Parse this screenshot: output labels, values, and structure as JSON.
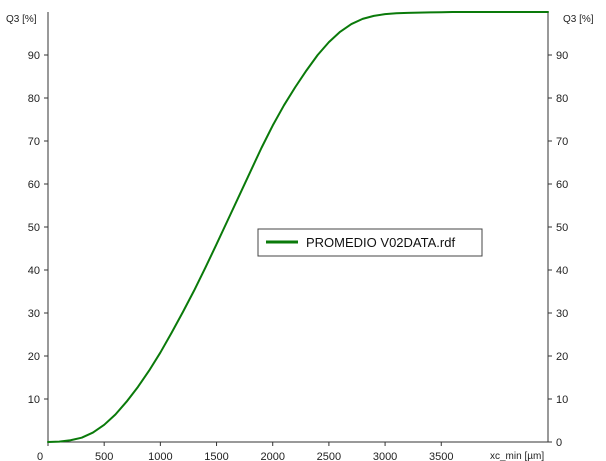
{
  "chart_data": {
    "type": "line",
    "title": "",
    "xlabel": "xc_min [µm]",
    "ylabel": "Q3 [%]",
    "ylabel_right": "Q3 [%]",
    "xlim": [
      0,
      4450
    ],
    "ylim": [
      0,
      100
    ],
    "x_ticks": [
      0,
      500,
      1000,
      1500,
      2000,
      2500,
      3000,
      3500
    ],
    "y_ticks": [
      10,
      20,
      30,
      40,
      50,
      60,
      70,
      80,
      90
    ],
    "y_ticks_right": [
      0,
      10,
      20,
      30,
      40,
      50,
      60,
      70,
      80,
      90
    ],
    "grid": false,
    "legend_position": "center-right",
    "series": [
      {
        "name": "PROMEDIO V02DATA.rdf",
        "color": "#0a7a0a",
        "x": [
          0,
          100,
          200,
          300,
          400,
          500,
          600,
          700,
          800,
          900,
          1000,
          1100,
          1200,
          1300,
          1400,
          1500,
          1600,
          1700,
          1800,
          1900,
          2000,
          2100,
          2200,
          2300,
          2400,
          2500,
          2600,
          2700,
          2800,
          2900,
          3000,
          3100,
          3200,
          3300,
          3400,
          3500,
          3600,
          3800,
          4000,
          4200,
          4450
        ],
        "values": [
          0,
          0.1,
          0.4,
          1.0,
          2.2,
          4.0,
          6.4,
          9.4,
          12.8,
          16.6,
          20.8,
          25.4,
          30.2,
          35.2,
          40.5,
          46.0,
          51.6,
          57.2,
          62.8,
          68.4,
          73.6,
          78.3,
          82.5,
          86.4,
          90.0,
          93.0,
          95.4,
          97.2,
          98.4,
          99.1,
          99.5,
          99.7,
          99.8,
          99.85,
          99.9,
          99.95,
          100,
          100,
          100,
          100,
          100
        ]
      }
    ]
  }
}
